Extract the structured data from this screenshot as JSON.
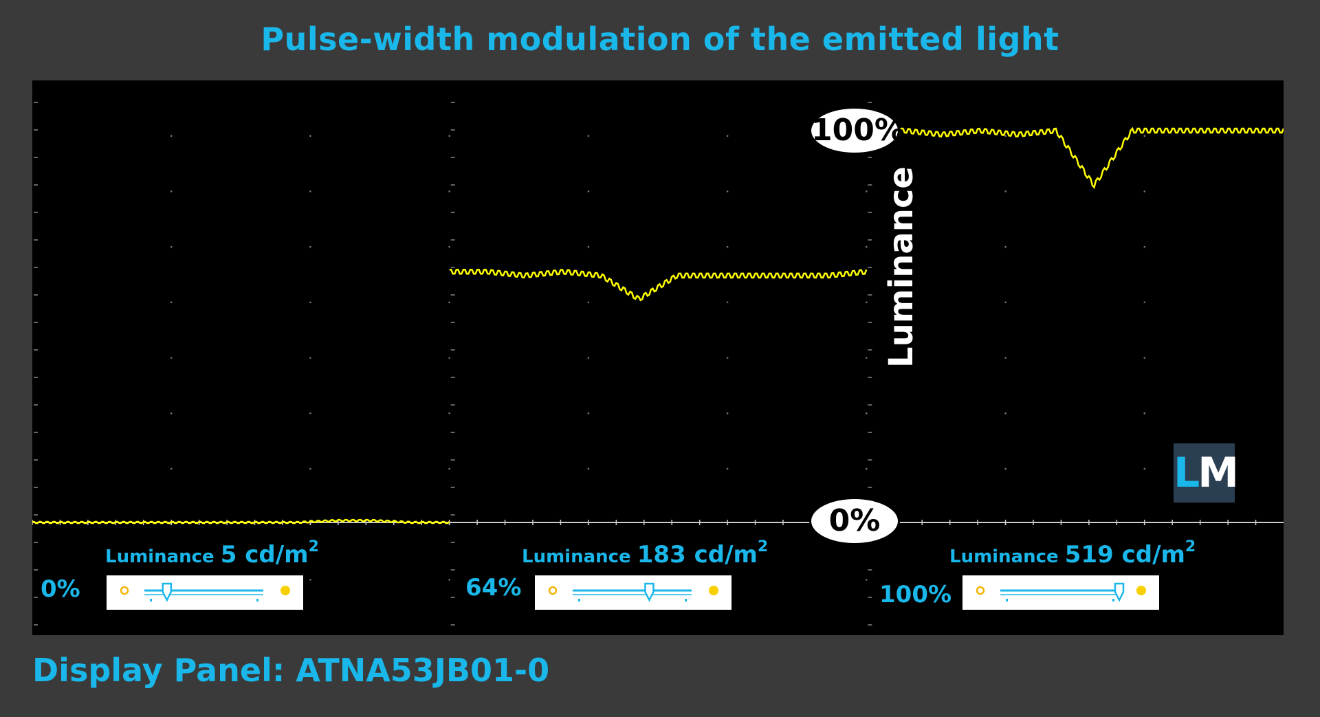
{
  "title": "Pulse-width modulation of the emitted light",
  "footer": "Display Panel: ATNA53JB01-0",
  "axis": {
    "ylabel": "Luminance",
    "y_top_label": "100%",
    "y_zero_label": "0%"
  },
  "logo": {
    "l": "L",
    "m": "M"
  },
  "colors": {
    "accent": "#1ab7ea",
    "trace": "#ffff00",
    "background": "#3a3a3a",
    "scope_bg": "#000000"
  },
  "panels": [
    {
      "lum_prefix": "Luminance",
      "lum_value": "5 cd/m",
      "lum_exp": "2",
      "brightness": "0%",
      "slider_fraction": 0.18
    },
    {
      "lum_prefix": "Luminance",
      "lum_value": "183 cd/m",
      "lum_exp": "2",
      "brightness": "64%",
      "slider_fraction": 0.64
    },
    {
      "lum_prefix": "Luminance",
      "lum_value": "519 cd/m",
      "lum_exp": "2",
      "brightness": "100%",
      "slider_fraction": 1.0
    }
  ],
  "chart_data": {
    "type": "line",
    "ylabel": "Luminance",
    "ylim": [
      0,
      100
    ],
    "series": [
      {
        "values": [
          0,
          0,
          0,
          0,
          0,
          0,
          0,
          0,
          0.5,
          0.5,
          0,
          0
        ]
      },
      {
        "values": [
          64,
          64,
          63,
          64,
          63,
          57,
          63,
          63,
          63,
          63,
          63,
          64
        ]
      },
      {
        "values": [
          100,
          100,
          99,
          100,
          99,
          100,
          86,
          100,
          100,
          100,
          100,
          100
        ]
      }
    ]
  }
}
